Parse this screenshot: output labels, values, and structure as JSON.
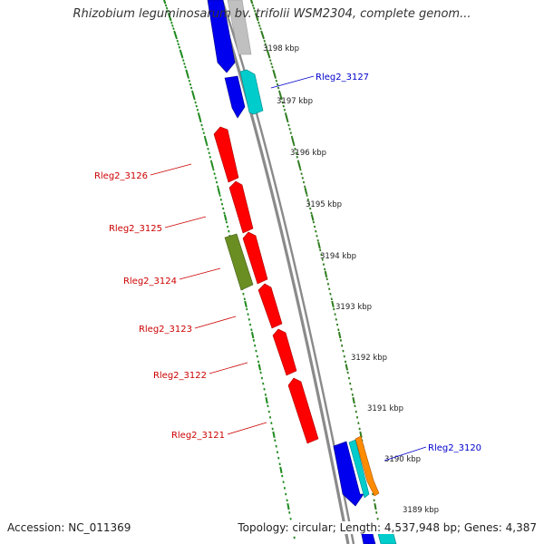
{
  "title": "Rhizobium leguminosarum bv. trifolii WSM2304, complete genom...",
  "footer": {
    "accession": "Accession: NC_011369",
    "topology": "Topology: circular; Length: 4,537,948 bp; Genes: 4,387"
  },
  "colors": {
    "backbone": "#8a8a8a",
    "tick_major": "#2e7d1e",
    "tick_minor": "#1e8a1e",
    "label_red": "#cc0000",
    "label_blue": "#0000cc",
    "gene_red": "#ff0000",
    "gene_blue": "#0000ee",
    "gene_cyan": "#00cccc",
    "gene_olive": "#6b8e23",
    "gene_gray": "#c0c0c0",
    "gene_orange": "#ff8c00"
  },
  "scale": {
    "unit": "kbp",
    "labels": [
      "3198 kbp",
      "3197 kbp",
      "3196 kbp",
      "3195 kbp",
      "3194 kbp",
      "3193 kbp",
      "3192 kbp",
      "3191 kbp",
      "3190 kbp",
      "3189 kbp"
    ]
  },
  "genes": [
    {
      "name": "",
      "color": "gene_blue",
      "strand": "left"
    },
    {
      "name": "",
      "color": "gene_gray",
      "strand": "right"
    },
    {
      "name": "",
      "color": "gene_blue",
      "strand": "left"
    },
    {
      "name": "Rleg2_3127",
      "color": "gene_cyan",
      "strand": "right"
    },
    {
      "name": "Rleg2_3126",
      "color": "gene_red",
      "strand": "left"
    },
    {
      "name": "Rleg2_3125",
      "color": "gene_red",
      "strand": "left"
    },
    {
      "name": "Rleg2_3124",
      "color": "gene_olive",
      "strand": "left"
    },
    {
      "name": "",
      "color": "gene_red",
      "strand": "left"
    },
    {
      "name": "Rleg2_3123",
      "color": "gene_red",
      "strand": "left"
    },
    {
      "name": "Rleg2_3122",
      "color": "gene_red",
      "strand": "left"
    },
    {
      "name": "Rleg2_3121",
      "color": "gene_red",
      "strand": "left"
    },
    {
      "name": "",
      "color": "gene_blue",
      "strand": "left"
    },
    {
      "name": "",
      "color": "gene_cyan",
      "strand": "left"
    },
    {
      "name": "Rleg2_3120",
      "color": "gene_orange",
      "strand": "right"
    }
  ]
}
